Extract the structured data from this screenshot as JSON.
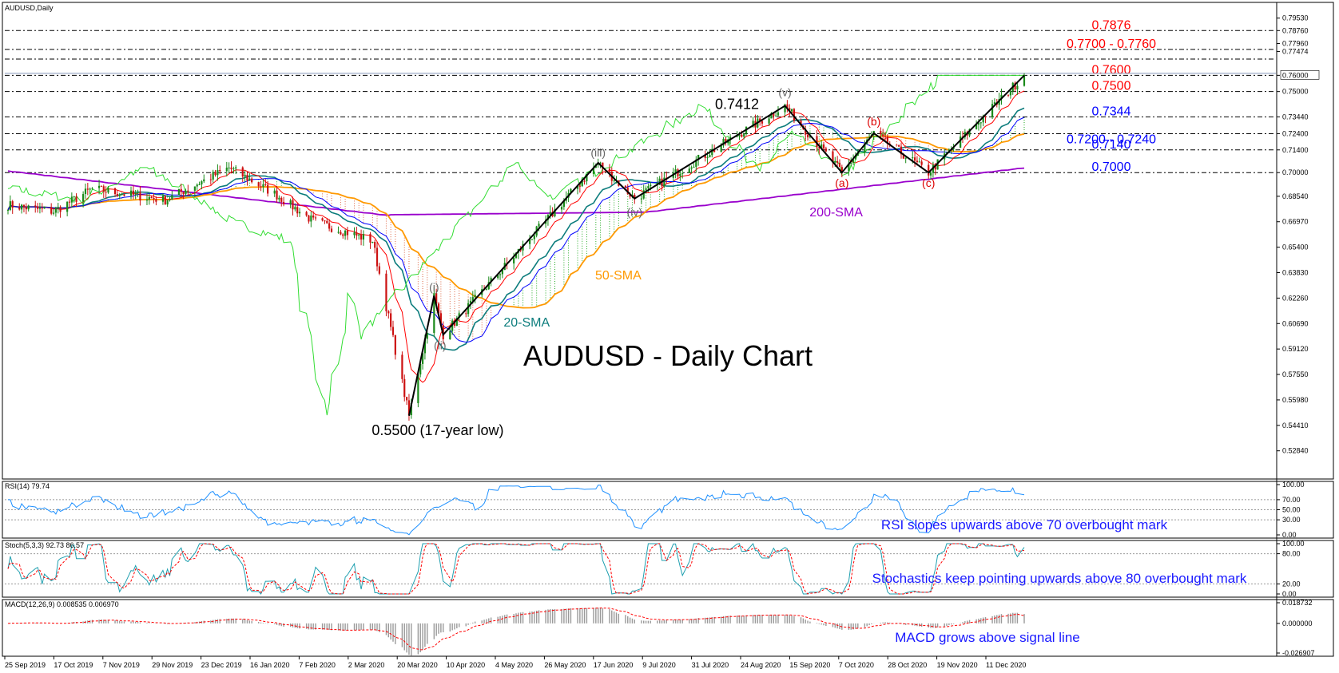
{
  "window": {
    "symbol_label": "AUDUSD,Daily"
  },
  "chart_data": [
    {
      "panel": "price",
      "type": "candlestick",
      "title": "AUDUSD - Daily Chart",
      "ylim": [
        0.512,
        0.804
      ],
      "y_ticks": [
        "0.79530",
        "0.78760",
        "0.77960",
        "0.77474",
        "0.76000",
        "0.75000",
        "0.73440",
        "0.72400",
        "0.71400",
        "0.70000",
        "0.68540",
        "0.66970",
        "0.65400",
        "0.63830",
        "0.62260",
        "0.60690",
        "0.59120",
        "0.57550",
        "0.55980",
        "0.54410",
        "0.52840"
      ],
      "x_ticks": [
        "25 Sep 2019",
        "17 Oct 2019",
        "7 Nov 2019",
        "29 Nov 2019",
        "23 Dec 2019",
        "16 Jan 2020",
        "7 Feb 2020",
        "2 Mar 2020",
        "20 Mar 2020",
        "10 Apr 2020",
        "4 May 2020",
        "26 May 2020",
        "17 Jun 2020",
        "9 Jul 2020",
        "31 Jul 2020",
        "24 Aug 2020",
        "15 Sep 2020",
        "7 Oct 2020",
        "28 Oct 2020",
        "19 Nov 2020",
        "11 Dec 2020"
      ],
      "levels": [
        {
          "label": "0.7876",
          "values": [
            0.7876
          ],
          "color": "#ff0000"
        },
        {
          "label": "0.7700 - 0.7760",
          "values": [
            0.77,
            0.776
          ],
          "color": "#ff0000"
        },
        {
          "label": "0.7600",
          "values": [
            0.76
          ],
          "color": "#ff0000"
        },
        {
          "label": "0.7500",
          "values": [
            0.75
          ],
          "color": "#ff0000"
        },
        {
          "label": "0.7344",
          "values": [
            0.7344
          ],
          "color": "#0000ff"
        },
        {
          "label": "0.7200 - 0.7240",
          "values": [
            0.724
          ],
          "color": "#0000ff"
        },
        {
          "label": "0.7140",
          "values": [
            0.714
          ],
          "color": "#0000ff"
        },
        {
          "label": "0.7000",
          "values": [
            0.7
          ],
          "color": "#0000ff"
        }
      ],
      "series": [
        {
          "name": "200-SMA",
          "color": "#9900cc"
        },
        {
          "name": "50-SMA",
          "color": "#ff9900"
        },
        {
          "name": "20-SMA",
          "color": "#0d7d7d"
        }
      ],
      "annotations": [
        {
          "text": "0.7412",
          "value": 0.7412
        },
        {
          "text": "0.5500 (17-year low)",
          "value": 0.55
        },
        {
          "text": "(i)"
        },
        {
          "text": "(ii)"
        },
        {
          "text": "(iii)"
        },
        {
          "text": "(iv)"
        },
        {
          "text": "(v)"
        },
        {
          "text": "(a)"
        },
        {
          "text": "(b)"
        },
        {
          "text": "(c)"
        }
      ],
      "wave_points": [
        {
          "date": "2020-03-19",
          "value": 0.55
        },
        {
          "date": "2020-03-30",
          "value": 0.624
        },
        {
          "date": "2020-04-03",
          "value": 0.6
        },
        {
          "date": "2020-06-10",
          "value": 0.706
        },
        {
          "date": "2020-06-26",
          "value": 0.684
        },
        {
          "date": "2020-08-31",
          "value": 0.7412
        },
        {
          "date": "2020-09-25",
          "value": 0.7
        },
        {
          "date": "2020-10-09",
          "value": 0.7243
        },
        {
          "date": "2020-11-02",
          "value": 0.7
        },
        {
          "date": "2020-12-14",
          "value": 0.76
        }
      ],
      "last_price": 0.76
    },
    {
      "panel": "rsi",
      "type": "line",
      "label": "RSI(14) 79.74",
      "last_value": 79.74,
      "ylim": [
        0,
        100
      ],
      "y_ticks": [
        "100.00",
        "70.00",
        "50.00",
        "30.00",
        "0.00"
      ],
      "annotation": "RSI slopes upwards above 70 overbought mark"
    },
    {
      "panel": "stochastic",
      "type": "line",
      "label": "Stoch(5,3,3) 92.73 86.57",
      "last_values": [
        92.73,
        86.57
      ],
      "ylim": [
        0,
        100
      ],
      "y_ticks": [
        "100.00",
        "80.00",
        "20.00",
        "0.00"
      ],
      "annotation": "Stochastics keep pointing upwards above 80 overbought mark"
    },
    {
      "panel": "macd",
      "type": "bar",
      "label": "MACD(12,26,9) 0.008535 0.006970",
      "last_values": [
        0.008535,
        0.00697
      ],
      "ylim": [
        -0.026907,
        0.018732
      ],
      "y_ticks": [
        "0.018732",
        "0.000000",
        "-0.026907"
      ],
      "annotation": "MACD grows above signal line"
    }
  ]
}
